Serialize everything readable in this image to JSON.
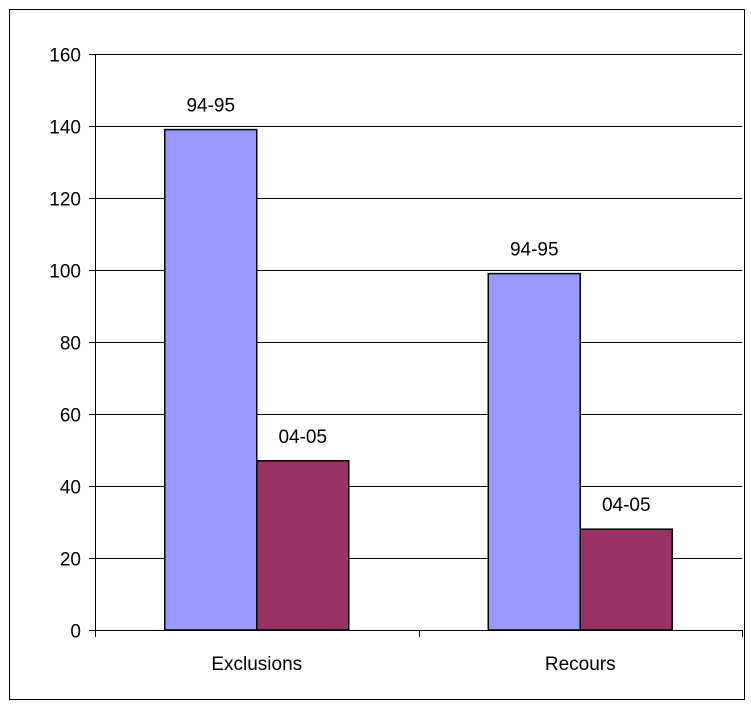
{
  "chart_data": {
    "type": "bar",
    "categories": [
      "Exclusions",
      "Recours"
    ],
    "series": [
      {
        "values": [
          139,
          99
        ],
        "labels": [
          "94-95",
          "94-95"
        ],
        "color": "#9999FF"
      },
      {
        "values": [
          47,
          28
        ],
        "labels": [
          "04-05",
          "04-05"
        ],
        "color": "#993366"
      }
    ],
    "ylim": [
      0,
      160
    ],
    "yticks": [
      0,
      20,
      40,
      60,
      80,
      100,
      120,
      140,
      160
    ],
    "grid": true,
    "legend": "none",
    "title": "",
    "xlabel": "",
    "ylabel": ""
  }
}
